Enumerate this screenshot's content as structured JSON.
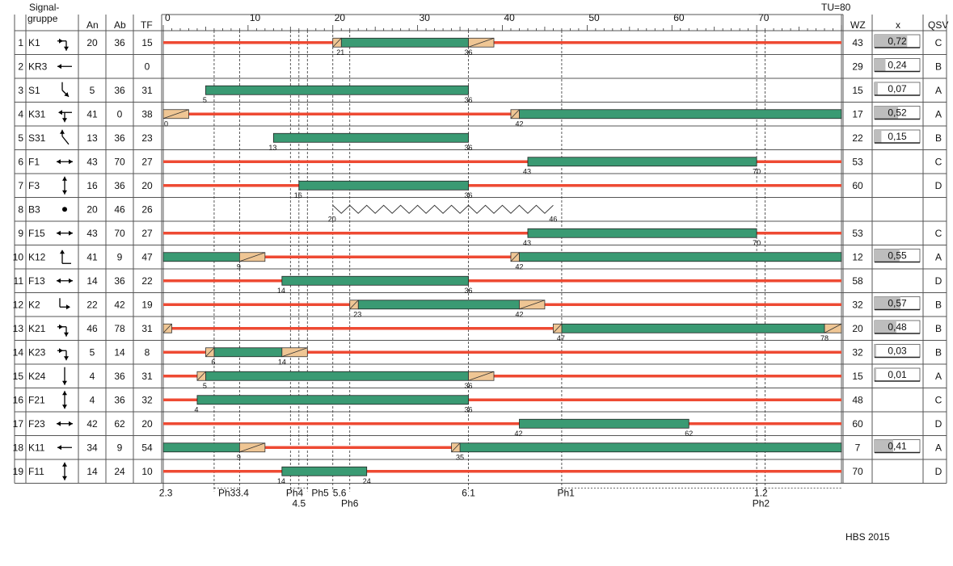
{
  "cycle_time": "TU=80",
  "headers": {
    "signal": "Signal-",
    "signal2": "gruppe",
    "an": "An",
    "ab": "Ab",
    "tf": "TF",
    "wz": "WZ",
    "x": "x",
    "qsv": "QSV"
  },
  "time_ticks": [
    "0",
    "10",
    "20",
    "30",
    "40",
    "50",
    "60",
    "70"
  ],
  "footer": "HBS 2015",
  "colors": {
    "green": "#3a9a73",
    "red": "#ee4a33",
    "amber": "#efc694",
    "xbar": "#bdbdbd"
  },
  "chart_data": {
    "type": "table",
    "cycle": 80,
    "rows": [
      {
        "no": "1",
        "name": "K1",
        "icon": "right-down",
        "an": "20",
        "ab": "36",
        "tf": "15",
        "green": [
          [
            21,
            36
          ]
        ],
        "amber": [
          [
            20,
            21
          ],
          [
            36,
            39
          ]
        ],
        "red": true,
        "labels": [
          "21",
          "36"
        ],
        "wz": "43",
        "x": "0,72",
        "xv": 0.72,
        "qsv": "C"
      },
      {
        "no": "2",
        "name": "KR3",
        "icon": "left",
        "an": "",
        "ab": "",
        "tf": "0",
        "green": [],
        "amber": [],
        "red": false,
        "labels": [],
        "wz": "29",
        "x": "0,24",
        "xv": 0.24,
        "qsv": "B"
      },
      {
        "no": "3",
        "name": "S1",
        "icon": "diag-down",
        "an": "5",
        "ab": "36",
        "tf": "31",
        "green": [
          [
            5,
            36
          ]
        ],
        "amber": [],
        "red": false,
        "labels": [
          "5",
          "36"
        ],
        "wz": "15",
        "x": "0,07",
        "xv": 0.07,
        "qsv": "A"
      },
      {
        "no": "4",
        "name": "K31",
        "icon": "left-down",
        "an": "41",
        "ab": "0",
        "tf": "38",
        "green": [
          [
            42,
            80
          ]
        ],
        "amber": [
          [
            0,
            3
          ],
          [
            41,
            42
          ]
        ],
        "red": true,
        "labels": [
          "0",
          "42"
        ],
        "wz": "17",
        "x": "0,52",
        "xv": 0.52,
        "qsv": "A"
      },
      {
        "no": "5",
        "name": "S31",
        "icon": "diag-up",
        "an": "13",
        "ab": "36",
        "tf": "23",
        "green": [
          [
            13,
            36
          ]
        ],
        "amber": [],
        "red": false,
        "labels": [
          "13",
          "36"
        ],
        "wz": "22",
        "x": "0,15",
        "xv": 0.15,
        "qsv": "B"
      },
      {
        "no": "6",
        "name": "F1",
        "icon": "horiz",
        "an": "43",
        "ab": "70",
        "tf": "27",
        "green": [
          [
            43,
            70
          ]
        ],
        "amber": [],
        "red": true,
        "labels": [
          "43",
          "70"
        ],
        "wz": "53",
        "x": "",
        "xv": null,
        "qsv": "C"
      },
      {
        "no": "7",
        "name": "F3",
        "icon": "vert",
        "an": "16",
        "ab": "36",
        "tf": "20",
        "green": [
          [
            16,
            36
          ]
        ],
        "amber": [],
        "red": true,
        "labels": [
          "16",
          "36"
        ],
        "wz": "60",
        "x": "",
        "xv": null,
        "qsv": "D"
      },
      {
        "no": "8",
        "name": "B3",
        "icon": "dot",
        "an": "20",
        "ab": "46",
        "tf": "26",
        "green": [],
        "amber": [],
        "red": false,
        "zigzag": [
          20,
          46
        ],
        "labels": [
          "20",
          "46"
        ],
        "wz": "",
        "x": "",
        "xv": null,
        "qsv": ""
      },
      {
        "no": "9",
        "name": "F15",
        "icon": "horiz",
        "an": "43",
        "ab": "70",
        "tf": "27",
        "green": [
          [
            43,
            70
          ]
        ],
        "amber": [],
        "red": true,
        "labels": [
          "43",
          "70"
        ],
        "wz": "53",
        "x": "",
        "xv": null,
        "qsv": "C"
      },
      {
        "no": "10",
        "name": "K12",
        "icon": "up-right",
        "an": "41",
        "ab": "9",
        "tf": "47",
        "green": [
          [
            0,
            9
          ],
          [
            42,
            80
          ]
        ],
        "amber": [
          [
            9,
            12
          ],
          [
            41,
            42
          ]
        ],
        "red": true,
        "labels": [
          "9",
          "42"
        ],
        "wz": "12",
        "x": "0,55",
        "xv": 0.55,
        "qsv": "A"
      },
      {
        "no": "11",
        "name": "F13",
        "icon": "horiz",
        "an": "14",
        "ab": "36",
        "tf": "22",
        "green": [
          [
            14,
            36
          ]
        ],
        "amber": [],
        "red": true,
        "labels": [
          "14",
          "36"
        ],
        "wz": "58",
        "x": "",
        "xv": null,
        "qsv": "D"
      },
      {
        "no": "12",
        "name": "K2",
        "icon": "down-right",
        "an": "22",
        "ab": "42",
        "tf": "19",
        "green": [
          [
            23,
            42
          ]
        ],
        "amber": [
          [
            22,
            23
          ],
          [
            42,
            45
          ]
        ],
        "red": true,
        "labels": [
          "23",
          "42"
        ],
        "wz": "32",
        "x": "0,57",
        "xv": 0.57,
        "qsv": "B"
      },
      {
        "no": "13",
        "name": "K21",
        "icon": "right-down",
        "an": "46",
        "ab": "78",
        "tf": "31",
        "green": [
          [
            47,
            78
          ]
        ],
        "amber": [
          [
            0,
            1
          ],
          [
            46,
            47
          ],
          [
            78,
            80
          ]
        ],
        "red": true,
        "labels": [
          "47",
          "78"
        ],
        "wz": "20",
        "x": "0,48",
        "xv": 0.48,
        "qsv": "B"
      },
      {
        "no": "14",
        "name": "K23",
        "icon": "right-down",
        "an": "5",
        "ab": "14",
        "tf": "8",
        "green": [
          [
            6,
            14
          ]
        ],
        "amber": [
          [
            5,
            6
          ],
          [
            14,
            17
          ]
        ],
        "red": true,
        "labels": [
          "6",
          "14"
        ],
        "wz": "32",
        "x": "0,03",
        "xv": 0.03,
        "qsv": "B"
      },
      {
        "no": "15",
        "name": "K24",
        "icon": "down",
        "an": "4",
        "ab": "36",
        "tf": "31",
        "green": [
          [
            5,
            36
          ]
        ],
        "amber": [
          [
            4,
            5
          ],
          [
            36,
            39
          ]
        ],
        "red": true,
        "labels": [
          "5",
          "36"
        ],
        "wz": "15",
        "x": "0,01",
        "xv": 0.01,
        "qsv": "A"
      },
      {
        "no": "16",
        "name": "F21",
        "icon": "vert",
        "an": "4",
        "ab": "36",
        "tf": "32",
        "green": [
          [
            4,
            36
          ]
        ],
        "amber": [],
        "red": true,
        "labels": [
          "4",
          "36"
        ],
        "wz": "48",
        "x": "",
        "xv": null,
        "qsv": "C"
      },
      {
        "no": "17",
        "name": "F23",
        "icon": "horiz",
        "an": "42",
        "ab": "62",
        "tf": "20",
        "green": [
          [
            42,
            62
          ]
        ],
        "amber": [],
        "red": true,
        "labels": [
          "42",
          "62"
        ],
        "wz": "60",
        "x": "",
        "xv": null,
        "qsv": "D"
      },
      {
        "no": "18",
        "name": "K11",
        "icon": "left",
        "an": "34",
        "ab": "9",
        "tf": "54",
        "green": [
          [
            0,
            9
          ],
          [
            35,
            80
          ]
        ],
        "amber": [
          [
            9,
            12
          ],
          [
            34,
            35
          ]
        ],
        "red": true,
        "labels": [
          "9",
          "35"
        ],
        "wz": "7",
        "x": "0,41",
        "xv": 0.41,
        "qsv": "A"
      },
      {
        "no": "19",
        "name": "F11",
        "icon": "vert",
        "an": "14",
        "ab": "24",
        "tf": "10",
        "green": [
          [
            14,
            24
          ]
        ],
        "amber": [],
        "red": true,
        "labels": [
          "14",
          "24"
        ],
        "wz": "70",
        "x": "",
        "xv": null,
        "qsv": "D"
      }
    ],
    "phase_lines": [
      {
        "t": 0,
        "dashed": false
      },
      {
        "t": 6,
        "dashed": true
      },
      {
        "t": 9,
        "dashed": true
      },
      {
        "t": 15,
        "dashed": true
      },
      {
        "t": 16,
        "dashed": true
      },
      {
        "t": 17,
        "dashed": true
      },
      {
        "t": 20,
        "dashed": true
      },
      {
        "t": 22,
        "dashed": true
      },
      {
        "t": 36,
        "dashed": true
      },
      {
        "t": 47,
        "dashed": true
      },
      {
        "t": 70,
        "dashed": true
      },
      {
        "t": 71,
        "dashed": true
      }
    ],
    "phase_labels": [
      {
        "text": "2.3",
        "t": 0.3,
        "row": 1
      },
      {
        "text": "Ph3",
        "t": 7.5,
        "row": 1
      },
      {
        "text": "3.4",
        "t": 9.3,
        "row": 1
      },
      {
        "text": "Ph4",
        "t": 15.5,
        "row": 1
      },
      {
        "text": "Ph5",
        "t": 18.5,
        "row": 1
      },
      {
        "text": "5.6",
        "t": 20.8,
        "row": 1
      },
      {
        "text": "4.5",
        "t": 16.0,
        "row": 2
      },
      {
        "text": "Ph6",
        "t": 22.0,
        "row": 2
      },
      {
        "text": "6.1",
        "t": 36.0,
        "row": 1
      },
      {
        "text": "Ph1",
        "t": 47.5,
        "row": 1
      },
      {
        "text": "1.2",
        "t": 70.5,
        "row": 1
      },
      {
        "text": "Ph2",
        "t": 70.5,
        "row": 2
      }
    ],
    "phase_spans": [
      [
        6,
        9
      ],
      [
        15,
        17
      ],
      [
        47,
        70
      ],
      [
        71,
        80
      ]
    ]
  }
}
